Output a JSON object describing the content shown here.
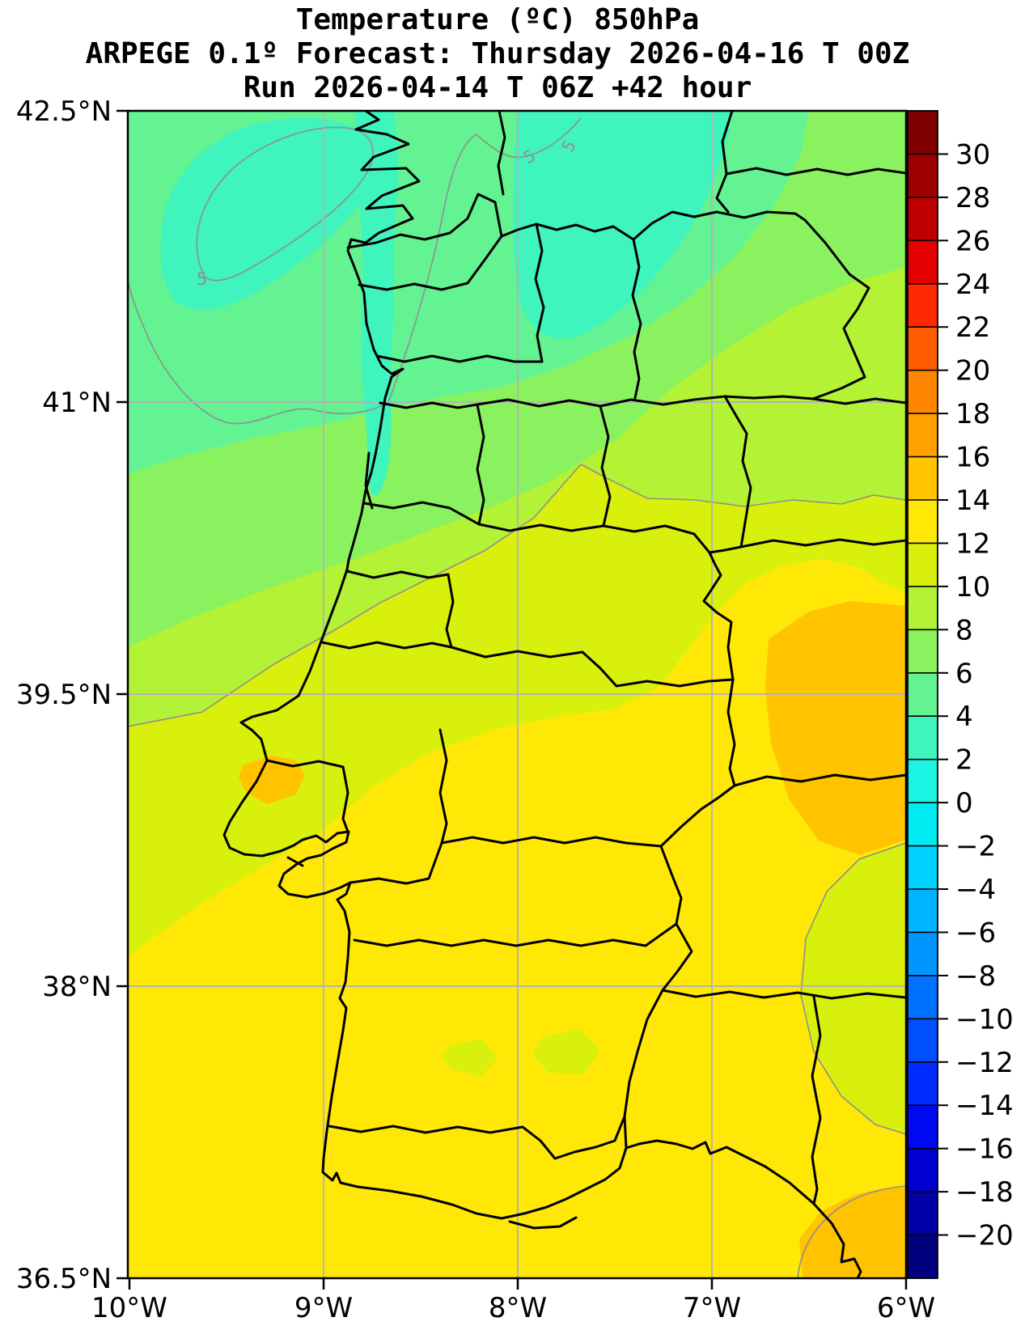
{
  "header": {
    "title": "Temperature (ºC) 850hPa",
    "forecast_line": "ARPEGE 0.1º Forecast: Thursday 2026-04-16 T 00Z",
    "run_line": "Run 2026-04-14 T 06Z +42 hour"
  },
  "map": {
    "model": "ARPEGE 0.1º",
    "parameter": "Temperature (ºC) 850hPa",
    "x_axis": {
      "tick_labels": [
        "10°W",
        "9°W",
        "8°W",
        "7°W",
        "6°W"
      ],
      "tick_x": [
        160,
        400,
        640,
        880,
        1120
      ]
    },
    "y_axis": {
      "tick_labels": [
        "42.5°N",
        "41°N",
        "39.5°N",
        "38°N",
        "36.5°N"
      ],
      "tick_y": [
        137,
        497,
        858,
        1219,
        1580
      ]
    },
    "gridline_color": "#b4b4b4",
    "isoline_color": "#8f8f8f",
    "isoline_label": "5",
    "land_boundary_color": "#000000"
  },
  "colorbar": {
    "units": "ºC",
    "tick_labels": [
      "30",
      "28",
      "26",
      "24",
      "22",
      "20",
      "18",
      "16",
      "14",
      "12",
      "10",
      "8",
      "6",
      "4",
      "2",
      "0",
      "−2",
      "−4",
      "−6",
      "−8",
      "−10",
      "−12",
      "−14",
      "−16",
      "−18",
      "−20"
    ],
    "segment_colors_top_to_bottom": [
      "#7f0000",
      "#9c0000",
      "#bf0000",
      "#e40000",
      "#ff2800",
      "#ff5e00",
      "#ff8600",
      "#ffa000",
      "#ffc300",
      "#ffe805",
      "#d9f00d",
      "#b3f234",
      "#8bf25f",
      "#63f392",
      "#3ff4bd",
      "#1bf4e3",
      "#00ecf2",
      "#00d0ff",
      "#00b4ff",
      "#0095ff",
      "#0072ff",
      "#004fff",
      "#002cff",
      "#0009f2",
      "#0000d0",
      "#0000a6",
      "#00007f"
    ],
    "band_step_degc": 2,
    "range_degc": [
      -20,
      30
    ]
  }
}
